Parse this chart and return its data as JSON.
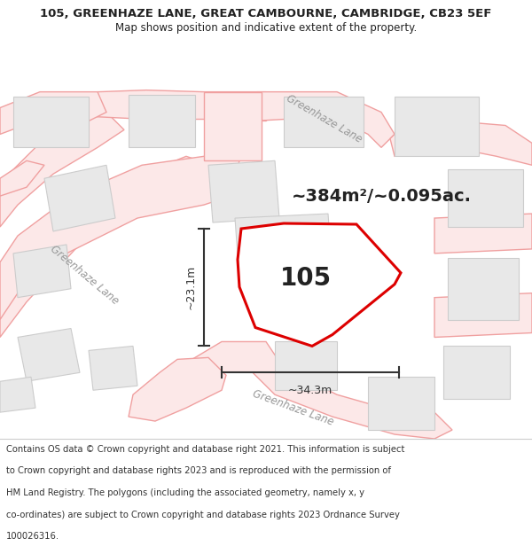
{
  "title": "105, GREENHAZE LANE, GREAT CAMBOURNE, CAMBRIDGE, CB23 5EF",
  "subtitle": "Map shows position and indicative extent of the property.",
  "area_text": "~384m²/~0.095ac.",
  "label_105": "105",
  "dim_horiz": "~34.3m",
  "dim_vert": "~23.1m",
  "footer_lines": [
    "Contains OS data © Crown copyright and database right 2021. This information is subject",
    "to Crown copyright and database rights 2023 and is reproduced with the permission of",
    "HM Land Registry. The polygons (including the associated geometry, namely x, y",
    "co-ordinates) are subject to Crown copyright and database rights 2023 Ordnance Survey",
    "100026316."
  ],
  "map_bg": "#f5f5f5",
  "road_fill": "#fce8e8",
  "road_edge": "#f0a0a0",
  "block_fill": "#e8e8e8",
  "block_edge": "#cccccc",
  "plot_fill": "#ffffff",
  "plot_edge": "#dd0000",
  "dim_color": "#333333",
  "text_color": "#222222",
  "road_label_color": "#999999",
  "footer_bg": "#ffffff",
  "title_bg": "#ffffff",
  "title_fontsize": 9.5,
  "subtitle_fontsize": 8.5,
  "area_fontsize": 14,
  "label_fontsize": 20,
  "dim_fontsize": 9,
  "road_label_fontsize": 8.5,
  "footer_fontsize": 7.2
}
